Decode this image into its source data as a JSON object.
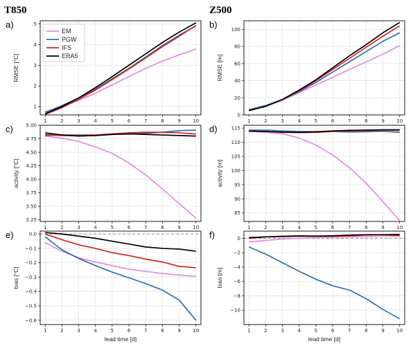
{
  "figure": {
    "column_titles": [
      "T850",
      "Z500"
    ],
    "xlabel": "lead time [d]"
  },
  "legend": [
    "EM",
    "PGW",
    "IFS",
    "ERA5"
  ],
  "colors": {
    "EM": "#e08ae0",
    "PGW": "#2a6fb0",
    "IFS": "#d62222",
    "ERA5": "#000000",
    "grid": "#e3e3e3",
    "zero": "#888888"
  },
  "chart_data": [
    {
      "panel": "a)",
      "type": "line",
      "ylabel": "RMSE [°C]",
      "x": [
        1,
        2,
        3,
        4,
        5,
        6,
        7,
        8,
        9,
        10
      ],
      "ylim": [
        0.6,
        5.15
      ],
      "yticks": [
        1,
        2,
        3,
        4,
        5
      ],
      "ytick_labels": [
        "1",
        "2",
        "3",
        "4",
        "5"
      ],
      "grid": true,
      "series": [
        {
          "name": "EM",
          "values": [
            0.75,
            1.0,
            1.3,
            1.65,
            2.05,
            2.45,
            2.85,
            3.2,
            3.5,
            3.78
          ]
        },
        {
          "name": "PGW",
          "values": [
            0.72,
            1.05,
            1.42,
            1.85,
            2.35,
            2.85,
            3.4,
            3.95,
            4.45,
            4.9
          ]
        },
        {
          "name": "IFS",
          "values": [
            0.62,
            0.95,
            1.35,
            1.8,
            2.3,
            2.82,
            3.35,
            3.9,
            4.4,
            4.92
          ]
        },
        {
          "name": "ERA5",
          "values": [
            0.65,
            1.0,
            1.42,
            1.92,
            2.45,
            3.0,
            3.55,
            4.1,
            4.6,
            5.05
          ]
        }
      ]
    },
    {
      "panel": "b)",
      "type": "line",
      "ylabel": "RMSE [m]",
      "x": [
        1,
        2,
        3,
        4,
        5,
        6,
        7,
        8,
        9,
        10
      ],
      "ylim": [
        0,
        110
      ],
      "yticks": [
        0,
        20,
        40,
        60,
        80,
        100
      ],
      "ytick_labels": [
        "0",
        "20",
        "40",
        "60",
        "80",
        "100"
      ],
      "grid": true,
      "series": [
        {
          "name": "EM",
          "values": [
            5,
            10,
            17,
            26,
            35,
            44,
            53,
            62,
            71,
            81
          ]
        },
        {
          "name": "PGW",
          "values": [
            6,
            11,
            18,
            27,
            38,
            50,
            62,
            74,
            86,
            96
          ]
        },
        {
          "name": "IFS",
          "values": [
            5,
            10,
            18,
            28,
            40,
            53,
            66,
            79,
            92,
            104
          ]
        },
        {
          "name": "ERA5",
          "values": [
            5,
            10,
            18,
            29,
            41,
            55,
            69,
            82,
            96,
            108
          ]
        }
      ]
    },
    {
      "panel": "c)",
      "type": "line",
      "ylabel": "activity [°C]",
      "x": [
        1,
        2,
        3,
        4,
        5,
        6,
        7,
        8,
        9,
        10
      ],
      "ylim": [
        3.22,
        5.0
      ],
      "yticks": [
        3.25,
        3.5,
        3.75,
        4.0,
        4.25,
        4.5,
        4.75,
        5.0
      ],
      "ytick_labels": [
        "3.25",
        "3.50",
        "3.75",
        "4.00",
        "4.25",
        "4.50",
        "4.75",
        "5.00"
      ],
      "grid": true,
      "series": [
        {
          "name": "EM",
          "values": [
            4.8,
            4.76,
            4.7,
            4.6,
            4.48,
            4.3,
            4.08,
            3.82,
            3.55,
            3.28
          ]
        },
        {
          "name": "PGW",
          "values": [
            4.81,
            4.82,
            4.82,
            4.82,
            4.83,
            4.84,
            4.85,
            4.87,
            4.9,
            4.91
          ]
        },
        {
          "name": "IFS",
          "values": [
            4.83,
            4.81,
            4.81,
            4.82,
            4.84,
            4.86,
            4.87,
            4.87,
            4.86,
            4.84
          ]
        },
        {
          "name": "ERA5",
          "values": [
            4.86,
            4.82,
            4.8,
            4.81,
            4.83,
            4.84,
            4.83,
            4.82,
            4.81,
            4.8
          ]
        }
      ]
    },
    {
      "panel": "d)",
      "type": "line",
      "ylabel": "activity [m]",
      "x": [
        1,
        2,
        3,
        4,
        5,
        6,
        7,
        8,
        9,
        10
      ],
      "ylim": [
        82,
        116
      ],
      "yticks": [
        85,
        90,
        95,
        100,
        105,
        110,
        115
      ],
      "ytick_labels": [
        "85",
        "90",
        "95",
        "100",
        "105",
        "110",
        "115"
      ],
      "grid": true,
      "series": [
        {
          "name": "EM",
          "values": [
            114,
            113.5,
            113,
            111.5,
            109,
            105.5,
            101,
            95.5,
            89,
            82.3
          ]
        },
        {
          "name": "PGW",
          "values": [
            114.3,
            114.3,
            114,
            113.8,
            113.7,
            113.8,
            113.6,
            113.7,
            113.9,
            113.5
          ]
        },
        {
          "name": "IFS",
          "values": [
            114,
            113.8,
            113.5,
            113.4,
            113.5,
            113.8,
            114,
            114.1,
            114.3,
            114.2
          ]
        },
        {
          "name": "ERA5",
          "values": [
            113.9,
            113.8,
            113.6,
            113.5,
            113.7,
            114,
            114.2,
            114.3,
            114.4,
            114.4
          ]
        }
      ]
    },
    {
      "panel": "e)",
      "type": "line",
      "ylabel": "bias [°C]",
      "x": [
        1,
        2,
        3,
        4,
        5,
        6,
        7,
        8,
        9,
        10
      ],
      "ylim": [
        -0.63,
        0.02
      ],
      "yticks": [
        -0.6,
        -0.5,
        -0.4,
        -0.3,
        -0.2,
        -0.1,
        0.0
      ],
      "ytick_labels": [
        "−0.6",
        "−0.5",
        "−0.4",
        "−0.3",
        "−0.2",
        "−0.1",
        "0.0"
      ],
      "grid": true,
      "zero_line": 0,
      "series": [
        {
          "name": "EM",
          "values": [
            -0.06,
            -0.12,
            -0.165,
            -0.195,
            -0.22,
            -0.245,
            -0.26,
            -0.275,
            -0.285,
            -0.295
          ]
        },
        {
          "name": "PGW",
          "values": [
            -0.02,
            -0.11,
            -0.17,
            -0.22,
            -0.265,
            -0.305,
            -0.345,
            -0.39,
            -0.46,
            -0.6
          ]
        },
        {
          "name": "IFS",
          "values": [
            0.0,
            -0.04,
            -0.075,
            -0.1,
            -0.13,
            -0.15,
            -0.175,
            -0.195,
            -0.225,
            -0.235
          ]
        },
        {
          "name": "ERA5",
          "values": [
            0.01,
            0.0,
            -0.015,
            -0.03,
            -0.05,
            -0.07,
            -0.09,
            -0.1,
            -0.105,
            -0.12
          ]
        }
      ]
    },
    {
      "panel": "f)",
      "type": "line",
      "ylabel": "bias [m]",
      "x": [
        1,
        2,
        3,
        4,
        5,
        6,
        7,
        8,
        9,
        10
      ],
      "ylim": [
        -12,
        1
      ],
      "yticks": [
        -10,
        -8,
        -6,
        -4,
        -2,
        0
      ],
      "ytick_labels": [
        "−10",
        "−8",
        "−6",
        "−4",
        "−2",
        "0"
      ],
      "grid": true,
      "zero_line": 0,
      "series": [
        {
          "name": "EM",
          "values": [
            -0.5,
            -0.3,
            -0.1,
            0.0,
            0.1,
            0.15,
            0.2,
            0.25,
            0.3,
            0.3
          ]
        },
        {
          "name": "PGW",
          "values": [
            -1.2,
            -2.2,
            -3.4,
            -4.6,
            -5.7,
            -6.6,
            -7.2,
            -8.4,
            -9.9,
            -11.2
          ]
        },
        {
          "name": "IFS",
          "values": [
            0.0,
            0.2,
            0.3,
            0.35,
            0.3,
            0.3,
            0.35,
            0.45,
            0.5,
            0.4
          ]
        },
        {
          "name": "ERA5",
          "values": [
            0.1,
            0.2,
            0.25,
            0.3,
            0.3,
            0.35,
            0.45,
            0.5,
            0.5,
            0.55
          ]
        }
      ]
    }
  ]
}
